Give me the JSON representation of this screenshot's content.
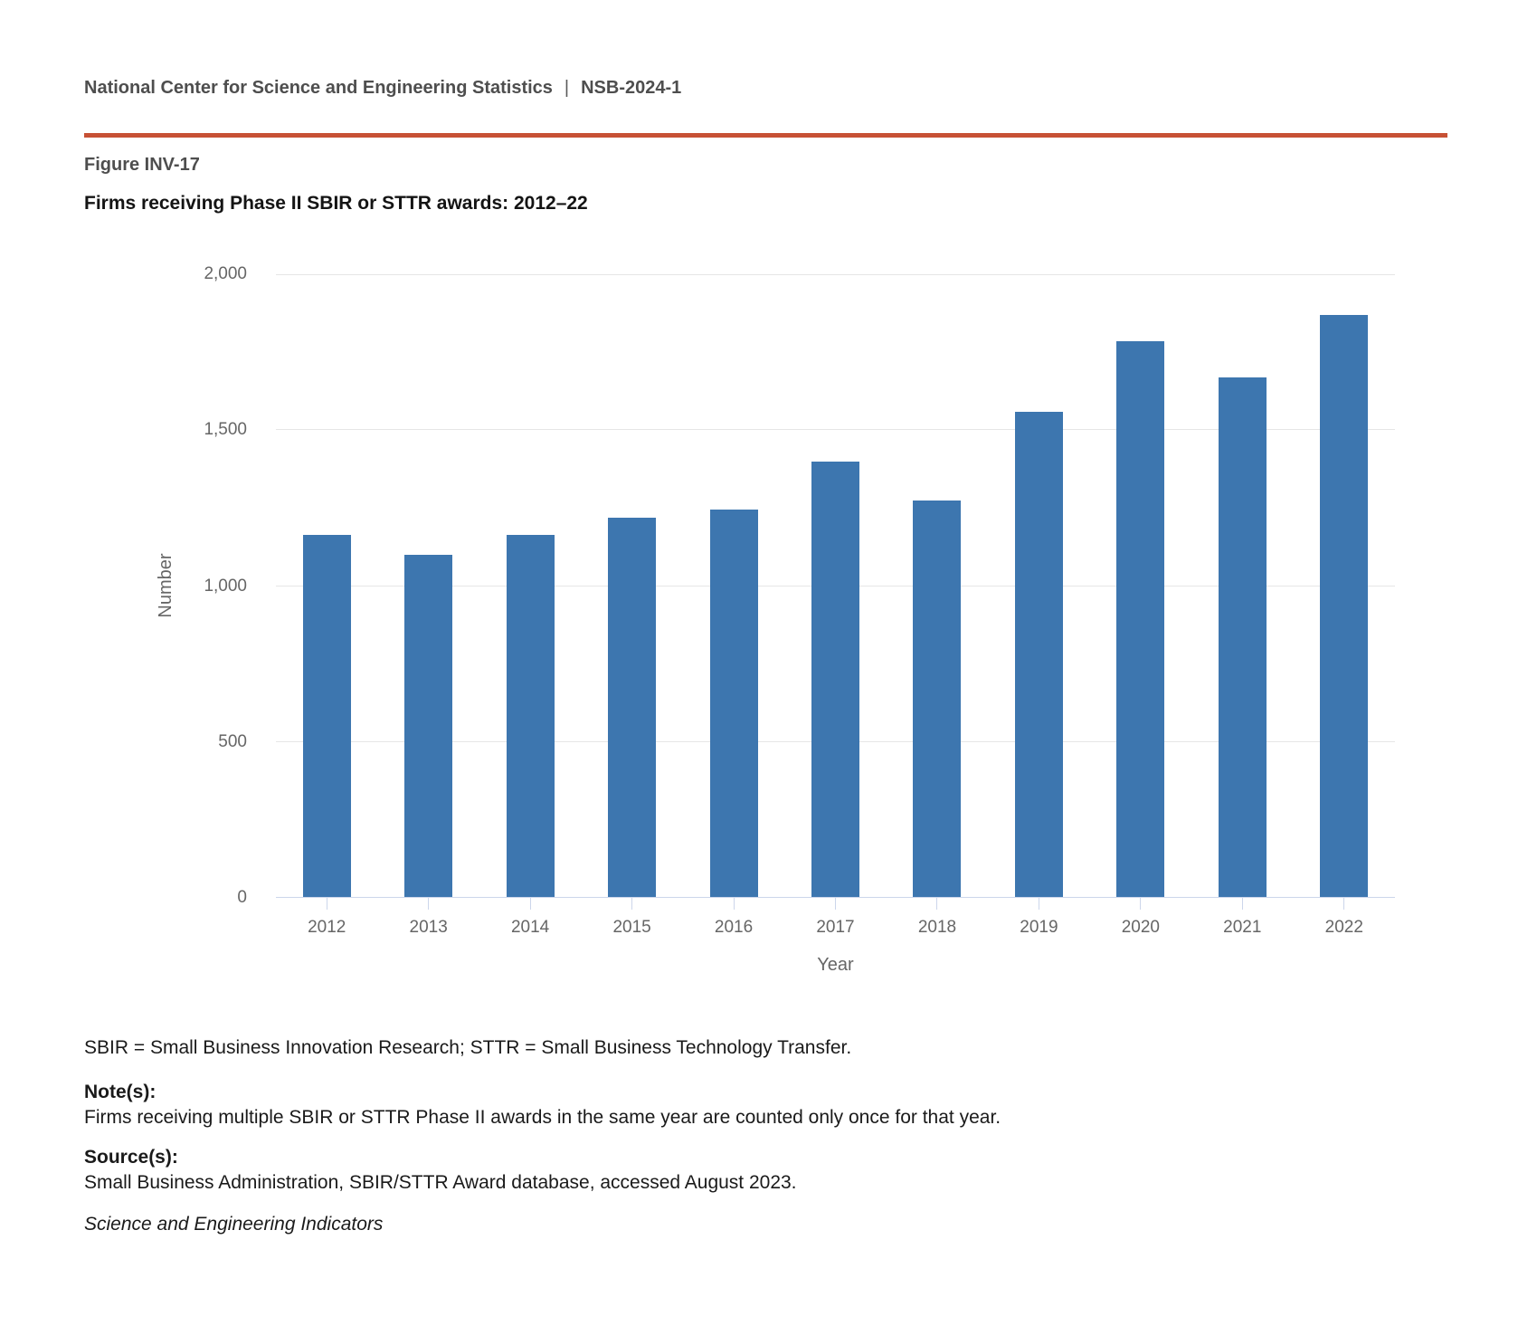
{
  "header": {
    "org": "National Center for Science and Engineering Statistics",
    "separator": "|",
    "report_id": "NSB-2024-1"
  },
  "figure": {
    "label": "Figure INV-17",
    "title": "Firms receiving Phase II SBIR or STTR awards: 2012–22"
  },
  "chart_data": {
    "type": "bar",
    "title": "Firms receiving Phase II SBIR or STTR awards: 2012–22",
    "categories": [
      "2012",
      "2013",
      "2014",
      "2015",
      "2016",
      "2017",
      "2018",
      "2019",
      "2020",
      "2021",
      "2022"
    ],
    "values": [
      1165,
      1100,
      1165,
      1220,
      1245,
      1400,
      1275,
      1560,
      1785,
      1670,
      1870
    ],
    "xlabel": "Year",
    "ylabel": "Number",
    "ylim": [
      0,
      2000
    ],
    "yticks": [
      0,
      500,
      1000,
      1500,
      2000
    ],
    "ytick_labels": [
      "0",
      "500",
      "1,000",
      "1,500",
      "2,000"
    ],
    "grid": true,
    "legend_position": "none",
    "bar_color": "#3d76af",
    "grid_color": "#e6e6e6",
    "axis_color": "#ccd6eb",
    "tick_label_color": "#666666"
  },
  "footnotes": {
    "abbreviations": "SBIR = Small Business Innovation Research; STTR = Small Business Technology Transfer.",
    "note_label": "Note(s):",
    "note_text": "Firms receiving multiple SBIR or STTR Phase II awards in the same year are counted only once for that year.",
    "source_label": "Source(s):",
    "source_text": "Small Business Administration, SBIR/STTR Award database, accessed August 2023.",
    "attribution": "Science and Engineering Indicators"
  },
  "colors": {
    "rule": "#c75135",
    "header_text": "#4e4e4e",
    "title_text": "#141414",
    "footnote_text": "#1a1a1a"
  }
}
